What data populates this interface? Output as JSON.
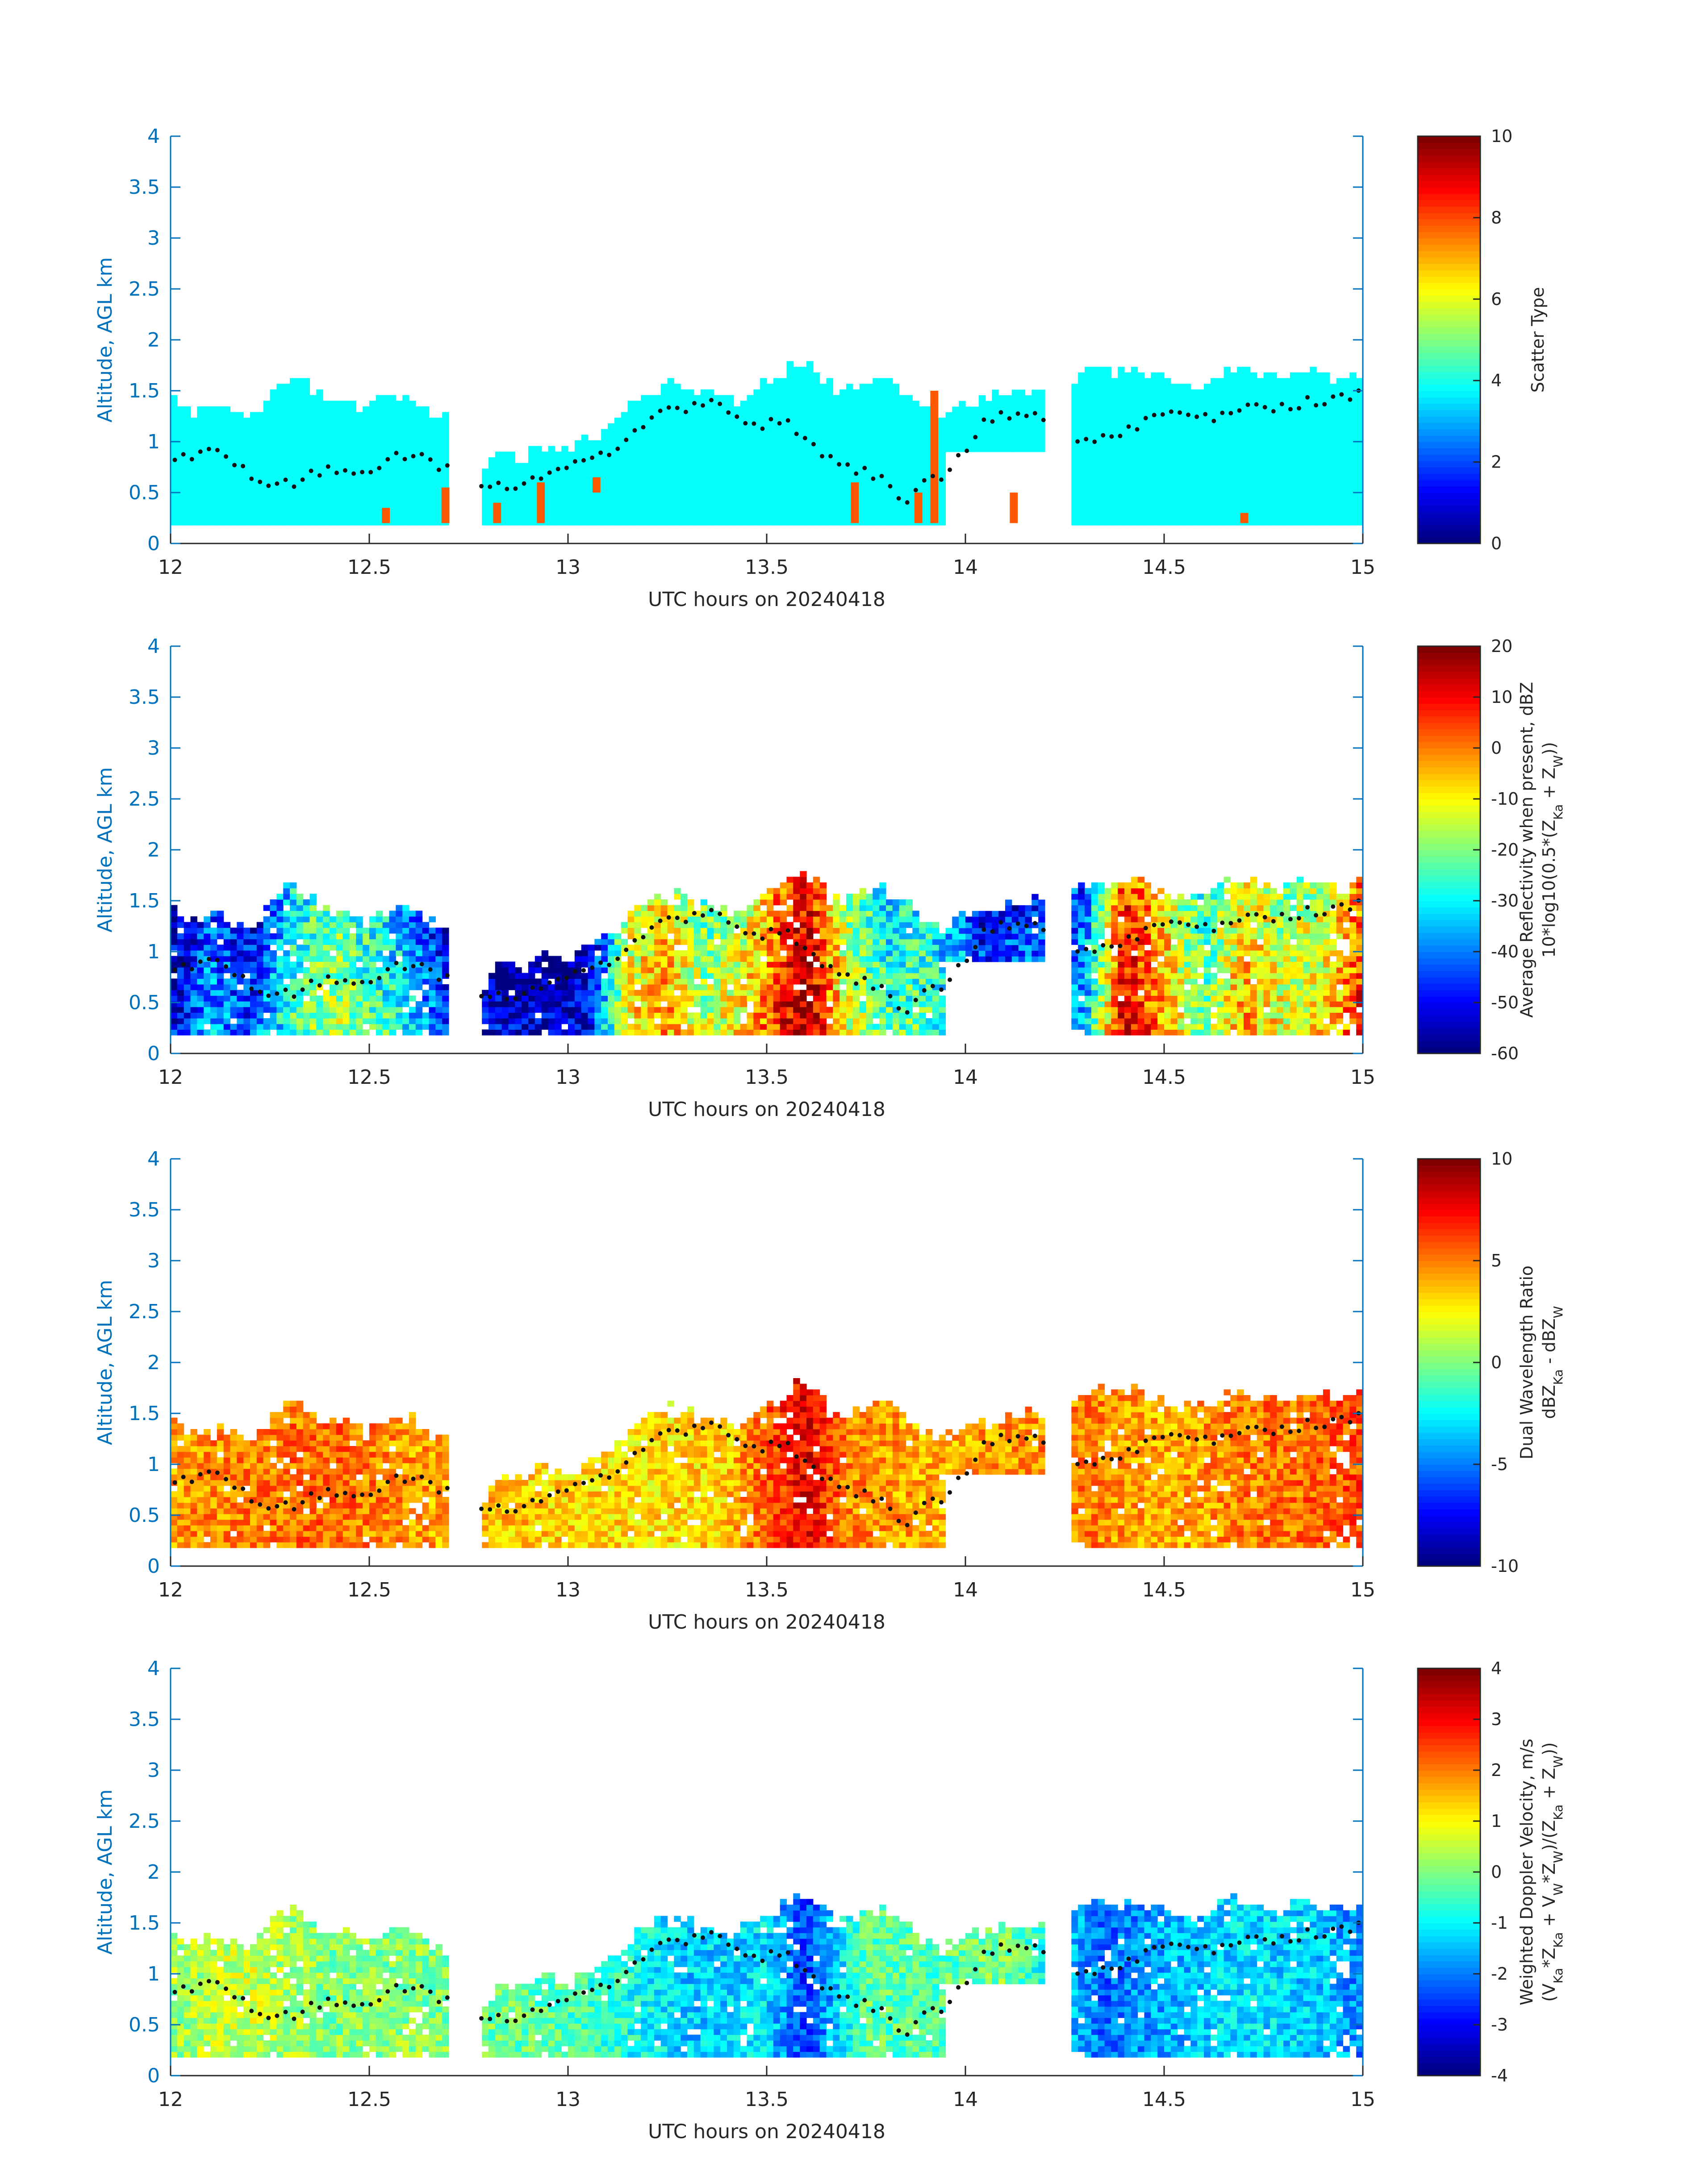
{
  "figure": {
    "panels": [
      {
        "id": "scatter-type",
        "xlabel": "UTC hours on 20240418",
        "ylabel": "Altitude, AGL km",
        "colorbar": {
          "title_lines": [
            "Scatter Type"
          ],
          "ticks": [
            "0",
            "2",
            "4",
            "6",
            "8",
            "10"
          ],
          "range": [
            0,
            10
          ]
        }
      },
      {
        "id": "average-reflectivity",
        "xlabel": "UTC hours on 20240418",
        "ylabel": "Altitude, AGL km",
        "colorbar": {
          "title_lines": [
            "Average Reflectivity when present, dBZ",
            "10*log10(0.5*(Z_Ka + Z_W))"
          ],
          "ticks": [
            "-60",
            "-50",
            "-40",
            "-30",
            "-20",
            "-10",
            "0",
            "10",
            "20"
          ],
          "range": [
            -60,
            20
          ]
        }
      },
      {
        "id": "dual-wavelength-ratio",
        "xlabel": "UTC hours on 20240418",
        "ylabel": "Altitude, AGL km",
        "colorbar": {
          "title_lines": [
            "Dual Wavelength Ratio",
            "dBZ_Ka - dBZ_W"
          ],
          "ticks": [
            "-10",
            "-5",
            "0",
            "5",
            "10"
          ],
          "range": [
            -10,
            10
          ]
        }
      },
      {
        "id": "weighted-doppler-velocity",
        "xlabel": "UTC hours on 20240418",
        "ylabel": "Altitude, AGL km",
        "colorbar": {
          "title_lines": [
            "Weighted Doppler Velocity, m/s",
            "(V_Ka*Z_Ka + V_W*Z_W)/(Z_Ka + Z_W))"
          ],
          "ticks": [
            "-4",
            "-3",
            "-2",
            "-1",
            "0",
            "1",
            "2",
            "3",
            "4"
          ],
          "range": [
            -4,
            4
          ]
        }
      }
    ]
  },
  "chart_data": [
    {
      "type": "heatmap",
      "panel": "scatter-type",
      "xlabel": "UTC hours on 20240418",
      "ylabel": "Altitude, AGL km",
      "xlim": [
        12,
        15
      ],
      "ylim": [
        0,
        4
      ],
      "xticks": [
        "12",
        "12.5",
        "13",
        "13.5",
        "14",
        "14.5",
        "15"
      ],
      "yticks": [
        "0",
        "0.5",
        "1",
        "1.5",
        "2",
        "2.5",
        "3",
        "3.5",
        "4"
      ],
      "color_range": [
        0,
        10
      ],
      "colormap": "jet",
      "background_value": 3.8,
      "highlight_value": 7.9,
      "cloud_segments": [
        {
          "x": [
            12.0,
            12.7
          ],
          "bottom": 0.18,
          "top": [
            1.45,
            1.25,
            1.35,
            1.3,
            1.2,
            1.45,
            1.65,
            1.5,
            1.4,
            1.35,
            1.3,
            1.4,
            1.45,
            1.25,
            1.2
          ]
        },
        {
          "x": [
            12.78,
            13.1
          ],
          "bottom": 0.18,
          "top": [
            0.55,
            0.9,
            0.8,
            0.95,
            0.85,
            1.0,
            1.1
          ]
        },
        {
          "x": [
            13.1,
            13.95
          ],
          "bottom": 0.18,
          "top": [
            1.1,
            1.3,
            1.45,
            1.55,
            1.5,
            1.4,
            1.35,
            1.5,
            1.6,
            1.75,
            1.65,
            1.45,
            1.55,
            1.6,
            1.5,
            1.3,
            1.2
          ]
        },
        {
          "x": [
            13.95,
            14.2
          ],
          "bottom": 0.9,
          "top": [
            1.3,
            1.35,
            1.4,
            1.45,
            1.5
          ]
        },
        {
          "x": [
            14.27,
            15.0
          ],
          "bottom": 0.18,
          "top": [
            1.55,
            1.7,
            1.65,
            1.7,
            1.6,
            1.55,
            1.5,
            1.65,
            1.7,
            1.65,
            1.6,
            1.7,
            1.65,
            1.6,
            1.65
          ]
        }
      ],
      "highlight_columns": [
        [
          12.54,
          0.2,
          0.35
        ],
        [
          12.69,
          0.2,
          0.55
        ],
        [
          12.82,
          0.2,
          0.4
        ],
        [
          12.93,
          0.2,
          0.6
        ],
        [
          13.07,
          0.5,
          0.65
        ],
        [
          13.72,
          0.2,
          0.6
        ],
        [
          13.88,
          0.2,
          0.5
        ],
        [
          13.92,
          0.2,
          1.5
        ],
        [
          14.12,
          0.2,
          0.5
        ],
        [
          14.7,
          0.2,
          0.3
        ]
      ],
      "dotted_layer_top": [
        [
          12.0,
          0.8
        ],
        [
          12.1,
          0.95
        ],
        [
          12.2,
          0.65
        ],
        [
          12.3,
          0.6
        ],
        [
          12.4,
          0.7
        ],
        [
          12.5,
          0.75
        ],
        [
          12.6,
          0.9
        ],
        [
          12.7,
          0.7
        ],
        [
          12.85,
          0.55
        ],
        [
          12.95,
          0.65
        ],
        [
          13.05,
          0.8
        ],
        [
          13.15,
          1.0
        ],
        [
          13.25,
          1.3
        ],
        [
          13.35,
          1.4
        ],
        [
          13.45,
          1.15
        ],
        [
          13.55,
          1.2
        ],
        [
          13.65,
          0.85
        ],
        [
          13.75,
          0.7
        ],
        [
          13.85,
          0.45
        ],
        [
          13.95,
          0.7
        ],
        [
          14.05,
          1.2
        ],
        [
          14.15,
          1.3
        ],
        [
          14.3,
          1.0
        ],
        [
          14.4,
          1.1
        ],
        [
          14.5,
          1.3
        ],
        [
          14.6,
          1.25
        ],
        [
          14.7,
          1.3
        ],
        [
          14.8,
          1.35
        ],
        [
          14.9,
          1.4
        ],
        [
          15.0,
          1.45
        ]
      ]
    },
    {
      "type": "heatmap",
      "panel": "average-reflectivity",
      "xlabel": "UTC hours on 20240418",
      "ylabel": "Altitude, AGL km",
      "xlim": [
        12,
        15
      ],
      "ylim": [
        0,
        4
      ],
      "xticks": [
        "12",
        "12.5",
        "13",
        "13.5",
        "14",
        "14.5",
        "15"
      ],
      "yticks": [
        "0",
        "0.5",
        "1",
        "1.5",
        "2",
        "2.5",
        "3",
        "3.5",
        "4"
      ],
      "color_range": [
        -60,
        20
      ],
      "colormap": "jet",
      "column_value_profile": [
        [
          12.0,
          -55
        ],
        [
          12.1,
          -40
        ],
        [
          12.2,
          -48
        ],
        [
          12.3,
          -30
        ],
        [
          12.4,
          -18
        ],
        [
          12.5,
          -25
        ],
        [
          12.6,
          -35
        ],
        [
          12.7,
          -50
        ],
        [
          12.9,
          -58
        ],
        [
          13.05,
          -55
        ],
        [
          13.15,
          -12
        ],
        [
          13.25,
          -5
        ],
        [
          13.35,
          -20
        ],
        [
          13.45,
          -10
        ],
        [
          13.6,
          15
        ],
        [
          13.7,
          -15
        ],
        [
          13.8,
          -28
        ],
        [
          13.9,
          -25
        ],
        [
          14.05,
          -50
        ],
        [
          14.15,
          -45
        ],
        [
          14.3,
          -40
        ],
        [
          14.4,
          10
        ],
        [
          14.5,
          -5
        ],
        [
          14.6,
          -25
        ],
        [
          14.7,
          -5
        ],
        [
          14.8,
          -15
        ],
        [
          14.9,
          -12
        ],
        [
          15.0,
          5
        ]
      ],
      "dotted_layer_top": [
        [
          12.0,
          0.8
        ],
        [
          12.1,
          0.95
        ],
        [
          12.2,
          0.65
        ],
        [
          12.3,
          0.6
        ],
        [
          12.4,
          0.7
        ],
        [
          12.5,
          0.75
        ],
        [
          12.6,
          0.9
        ],
        [
          12.7,
          0.7
        ],
        [
          12.85,
          0.55
        ],
        [
          12.95,
          0.65
        ],
        [
          13.05,
          0.8
        ],
        [
          13.15,
          1.0
        ],
        [
          13.25,
          1.3
        ],
        [
          13.35,
          1.4
        ],
        [
          13.45,
          1.15
        ],
        [
          13.55,
          1.2
        ],
        [
          13.65,
          0.85
        ],
        [
          13.75,
          0.7
        ],
        [
          13.85,
          0.45
        ],
        [
          13.95,
          0.7
        ],
        [
          14.05,
          1.2
        ],
        [
          14.15,
          1.3
        ],
        [
          14.3,
          1.0
        ],
        [
          14.4,
          1.1
        ],
        [
          14.5,
          1.3
        ],
        [
          14.6,
          1.25
        ],
        [
          14.7,
          1.3
        ],
        [
          14.8,
          1.35
        ],
        [
          14.9,
          1.4
        ],
        [
          15.0,
          1.45
        ]
      ]
    },
    {
      "type": "heatmap",
      "panel": "dual-wavelength-ratio",
      "xlabel": "UTC hours on 20240418",
      "ylabel": "Altitude, AGL km",
      "xlim": [
        12,
        15
      ],
      "ylim": [
        0,
        4
      ],
      "xticks": [
        "12",
        "12.5",
        "13",
        "13.5",
        "14",
        "14.5",
        "15"
      ],
      "yticks": [
        "0",
        "0.5",
        "1",
        "1.5",
        "2",
        "2.5",
        "3",
        "3.5",
        "4"
      ],
      "color_range": [
        -10,
        10
      ],
      "colormap": "jet",
      "column_value_profile": [
        [
          12.0,
          4.5
        ],
        [
          12.2,
          5.0
        ],
        [
          12.4,
          5.5
        ],
        [
          12.6,
          4.5
        ],
        [
          12.9,
          3.5
        ],
        [
          13.2,
          3.0
        ],
        [
          13.4,
          3.5
        ],
        [
          13.6,
          8.0
        ],
        [
          13.7,
          5.0
        ],
        [
          13.9,
          4.0
        ],
        [
          14.1,
          4.5
        ],
        [
          14.3,
          5.0
        ],
        [
          14.5,
          4.0
        ],
        [
          14.7,
          5.0
        ],
        [
          14.9,
          5.5
        ],
        [
          15.0,
          6.0
        ]
      ],
      "dotted_layer_top": [
        [
          12.0,
          0.8
        ],
        [
          12.1,
          0.95
        ],
        [
          12.2,
          0.65
        ],
        [
          12.3,
          0.6
        ],
        [
          12.4,
          0.7
        ],
        [
          12.5,
          0.75
        ],
        [
          12.6,
          0.9
        ],
        [
          12.7,
          0.7
        ],
        [
          12.85,
          0.55
        ],
        [
          12.95,
          0.65
        ],
        [
          13.05,
          0.8
        ],
        [
          13.15,
          1.0
        ],
        [
          13.25,
          1.3
        ],
        [
          13.35,
          1.4
        ],
        [
          13.45,
          1.15
        ],
        [
          13.55,
          1.2
        ],
        [
          13.65,
          0.85
        ],
        [
          13.75,
          0.7
        ],
        [
          13.85,
          0.45
        ],
        [
          13.95,
          0.7
        ],
        [
          14.05,
          1.2
        ],
        [
          14.15,
          1.3
        ],
        [
          14.3,
          1.0
        ],
        [
          14.4,
          1.1
        ],
        [
          14.5,
          1.3
        ],
        [
          14.6,
          1.25
        ],
        [
          14.7,
          1.3
        ],
        [
          14.8,
          1.35
        ],
        [
          14.9,
          1.4
        ],
        [
          15.0,
          1.45
        ]
      ]
    },
    {
      "type": "heatmap",
      "panel": "weighted-doppler-velocity",
      "xlabel": "UTC hours on 20240418",
      "ylabel": "Altitude, AGL km",
      "xlim": [
        12,
        15
      ],
      "ylim": [
        0,
        4
      ],
      "xticks": [
        "12",
        "12.5",
        "13",
        "13.5",
        "14",
        "14.5",
        "15"
      ],
      "yticks": [
        "0",
        "0.5",
        "1",
        "1.5",
        "2",
        "2.5",
        "3",
        "3.5",
        "4"
      ],
      "color_range": [
        -4,
        4
      ],
      "colormap": "jet",
      "column_value_profile": [
        [
          12.0,
          0.2
        ],
        [
          12.2,
          0.6
        ],
        [
          12.4,
          0.0
        ],
        [
          12.6,
          0.1
        ],
        [
          12.9,
          -0.2
        ],
        [
          13.1,
          -0.6
        ],
        [
          13.3,
          -1.4
        ],
        [
          13.5,
          -1.2
        ],
        [
          13.6,
          -2.6
        ],
        [
          13.75,
          -0.2
        ],
        [
          13.9,
          -0.4
        ],
        [
          14.1,
          0.0
        ],
        [
          14.35,
          -2.2
        ],
        [
          14.5,
          -1.6
        ],
        [
          14.7,
          -1.2
        ],
        [
          14.9,
          -1.4
        ],
        [
          15.0,
          -2.0
        ]
      ],
      "dotted_layer_top": [
        [
          12.0,
          0.8
        ],
        [
          12.1,
          0.95
        ],
        [
          12.2,
          0.65
        ],
        [
          12.3,
          0.6
        ],
        [
          12.4,
          0.7
        ],
        [
          12.5,
          0.75
        ],
        [
          12.6,
          0.9
        ],
        [
          12.7,
          0.7
        ],
        [
          12.85,
          0.55
        ],
        [
          12.95,
          0.65
        ],
        [
          13.05,
          0.8
        ],
        [
          13.15,
          1.0
        ],
        [
          13.25,
          1.3
        ],
        [
          13.35,
          1.4
        ],
        [
          13.45,
          1.15
        ],
        [
          13.55,
          1.2
        ],
        [
          13.65,
          0.85
        ],
        [
          13.75,
          0.7
        ],
        [
          13.85,
          0.45
        ],
        [
          13.95,
          0.7
        ],
        [
          14.05,
          1.2
        ],
        [
          14.15,
          1.3
        ],
        [
          14.3,
          1.0
        ],
        [
          14.4,
          1.1
        ],
        [
          14.5,
          1.3
        ],
        [
          14.6,
          1.25
        ],
        [
          14.7,
          1.3
        ],
        [
          14.8,
          1.35
        ],
        [
          14.9,
          1.4
        ],
        [
          15.0,
          1.45
        ]
      ]
    }
  ]
}
